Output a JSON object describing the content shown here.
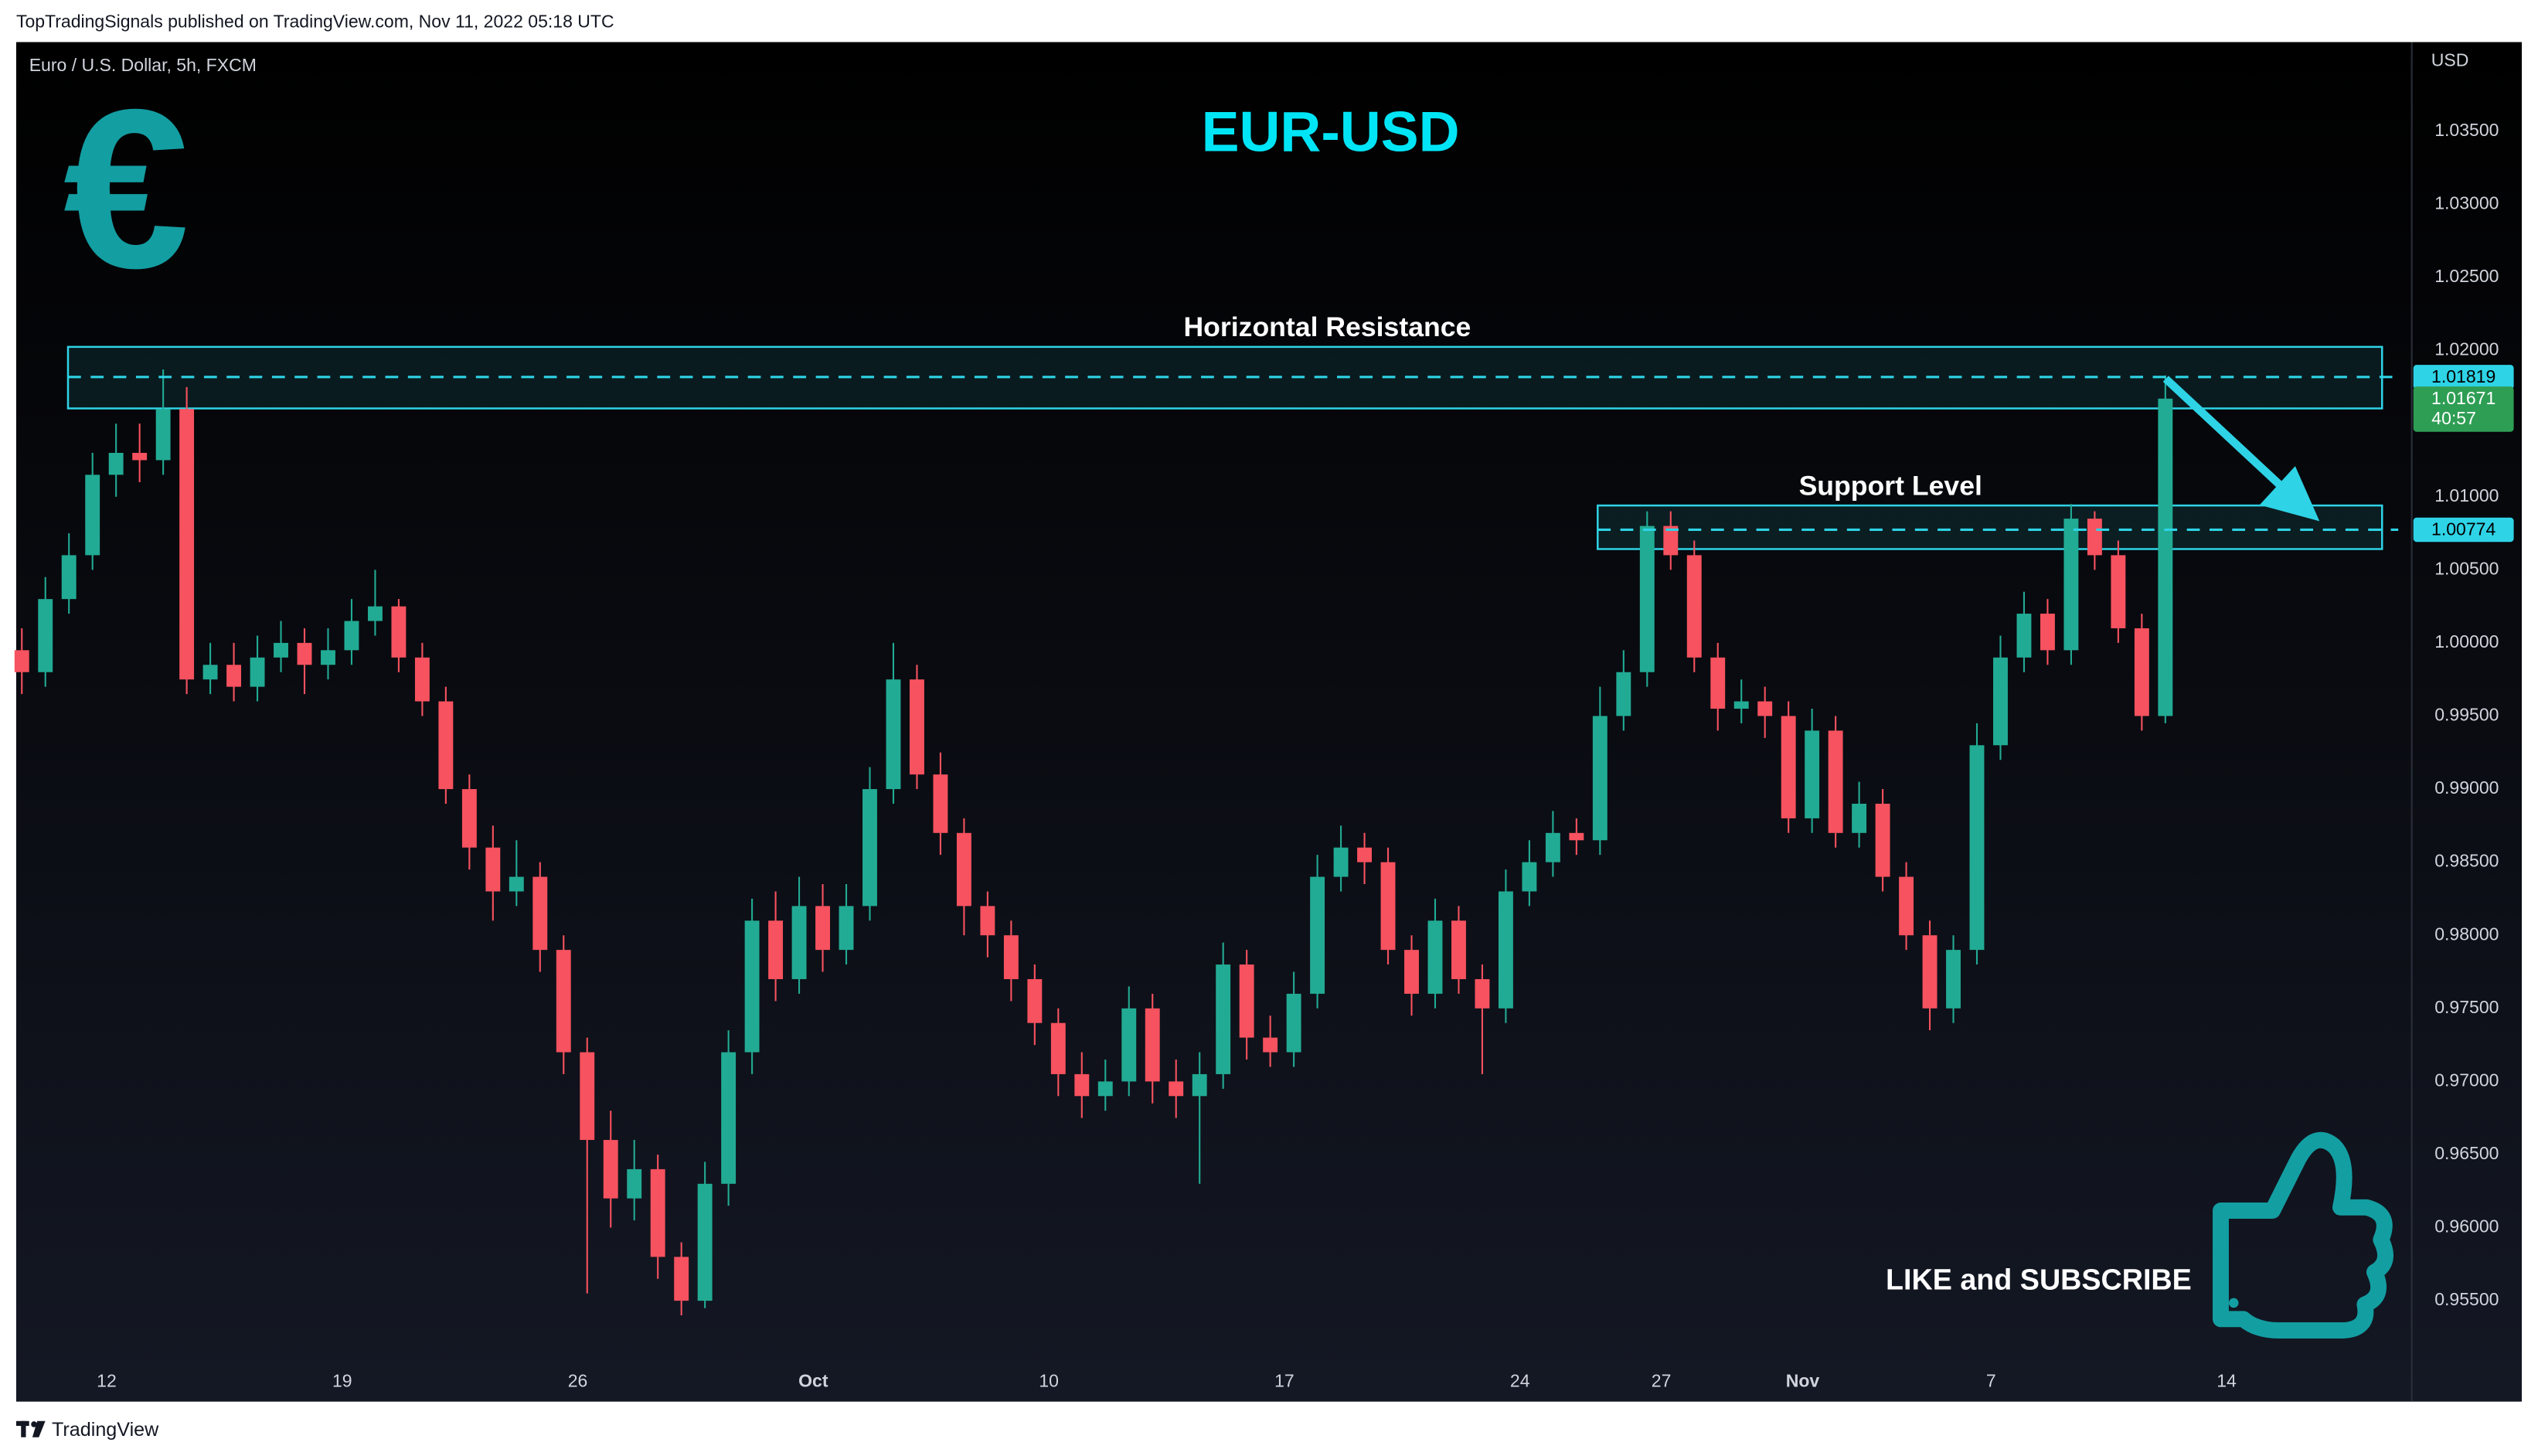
{
  "header": {
    "publisher": "TopTradingSignals published on TradingView.com, Nov 11, 2022 05:18 UTC"
  },
  "footer": {
    "brand": "TradingView"
  },
  "annotations": {
    "symbol_icon": "€",
    "call_to_action": "LIKE and SUBSCRIBE"
  },
  "chart_data": {
    "type": "candlestick",
    "title": "EUR-USD",
    "subtitle": "Euro / U.S. Dollar, 5h, FXCM",
    "y_axis_label": "USD",
    "up_color": "#22ab94",
    "down_color": "#f7525f",
    "grid": false,
    "xlim": [
      -1.92,
      48.93
    ],
    "ylim": [
      0.9481,
      1.0411
    ],
    "xticks": [
      {
        "value": 0,
        "label": "12"
      },
      {
        "value": 5,
        "label": "19"
      },
      {
        "value": 10,
        "label": "26"
      },
      {
        "value": 15,
        "label": "Oct"
      },
      {
        "value": 20,
        "label": "10"
      },
      {
        "value": 25,
        "label": "17"
      },
      {
        "value": 30,
        "label": "24"
      },
      {
        "value": 33,
        "label": "27"
      },
      {
        "value": 36,
        "label": "Nov"
      },
      {
        "value": 40,
        "label": "7"
      },
      {
        "value": 45,
        "label": "14"
      }
    ],
    "yticks": [
      {
        "value": 0.955,
        "label": "0.95500"
      },
      {
        "value": 0.96,
        "label": "0.96000"
      },
      {
        "value": 0.965,
        "label": "0.96500"
      },
      {
        "value": 0.97,
        "label": "0.97000"
      },
      {
        "value": 0.975,
        "label": "0.97500"
      },
      {
        "value": 0.98,
        "label": "0.98000"
      },
      {
        "value": 0.985,
        "label": "0.98500"
      },
      {
        "value": 0.99,
        "label": "0.99000"
      },
      {
        "value": 0.995,
        "label": "0.99500"
      },
      {
        "value": 1.0,
        "label": "1.00000"
      },
      {
        "value": 1.005,
        "label": "1.00500"
      },
      {
        "value": 1.01,
        "label": "1.01000"
      },
      {
        "value": 1.015,
        "label": "1.01500"
      },
      {
        "value": 1.02,
        "label": "1.02000"
      },
      {
        "value": 1.025,
        "label": "1.02500"
      },
      {
        "value": 1.03,
        "label": "1.03000"
      },
      {
        "value": 1.035,
        "label": "1.03500"
      }
    ],
    "x": [
      -1.8,
      -1.3,
      -0.8,
      -0.3,
      0.2,
      0.7,
      1.2,
      1.7,
      2.2,
      2.7,
      3.2,
      3.7,
      4.2,
      4.7,
      5.2,
      5.7,
      6.2,
      6.7,
      7.2,
      7.7,
      8.2,
      8.7,
      9.2,
      9.7,
      10.2,
      10.7,
      11.2,
      11.7,
      12.2,
      12.7,
      13.2,
      13.7,
      14.2,
      14.7,
      15.2,
      15.7,
      16.2,
      16.7,
      17.2,
      17.7,
      18.2,
      18.7,
      19.2,
      19.7,
      20.2,
      20.7,
      21.2,
      21.7,
      22.2,
      22.7,
      23.2,
      23.7,
      24.2,
      24.7,
      25.2,
      25.7,
      26.2,
      26.7,
      27.2,
      27.7,
      28.2,
      28.7,
      29.2,
      29.7,
      30.2,
      30.7,
      31.2,
      31.7,
      32.2,
      32.7,
      33.2,
      33.7,
      34.2,
      34.7,
      35.2,
      35.7,
      36.2,
      36.7,
      37.2,
      37.7,
      38.2,
      38.7,
      39.2,
      39.7,
      40.2,
      40.7,
      41.2,
      41.7,
      42.2,
      42.7,
      43.2,
      43.7
    ],
    "open": [
      0.9995,
      0.998,
      1.003,
      1.006,
      1.0115,
      1.013,
      1.0125,
      1.016,
      0.9975,
      0.9985,
      0.997,
      0.999,
      1.0,
      0.9985,
      0.9995,
      1.0015,
      1.0025,
      0.999,
      0.996,
      0.99,
      0.986,
      0.983,
      0.984,
      0.979,
      0.972,
      0.966,
      0.962,
      0.964,
      0.958,
      0.955,
      0.963,
      0.972,
      0.981,
      0.977,
      0.982,
      0.979,
      0.982,
      0.99,
      0.9975,
      0.991,
      0.987,
      0.982,
      0.98,
      0.977,
      0.974,
      0.9705,
      0.969,
      0.97,
      0.975,
      0.97,
      0.969,
      0.9705,
      0.978,
      0.973,
      0.972,
      0.976,
      0.984,
      0.986,
      0.985,
      0.979,
      0.976,
      0.981,
      0.977,
      0.975,
      0.983,
      0.985,
      0.987,
      0.9865,
      0.995,
      0.998,
      1.008,
      1.006,
      0.999,
      0.9955,
      0.996,
      0.995,
      0.988,
      0.994,
      0.987,
      0.989,
      0.984,
      0.98,
      0.975,
      0.979,
      0.993,
      0.999,
      1.002,
      0.9995,
      1.0085,
      1.006,
      1.001,
      0.995
    ],
    "high": [
      1.001,
      1.0045,
      1.0075,
      1.013,
      1.015,
      1.015,
      1.0187,
      1.0175,
      1.0,
      1.0,
      1.0005,
      1.0015,
      1.001,
      1.001,
      1.003,
      1.005,
      1.003,
      1.0,
      0.997,
      0.991,
      0.9875,
      0.9865,
      0.985,
      0.98,
      0.973,
      0.968,
      0.966,
      0.965,
      0.959,
      0.9645,
      0.9735,
      0.9825,
      0.983,
      0.984,
      0.9835,
      0.9835,
      0.9915,
      1.0,
      0.9985,
      0.9925,
      0.988,
      0.983,
      0.981,
      0.978,
      0.975,
      0.972,
      0.9715,
      0.9765,
      0.976,
      0.9715,
      0.972,
      0.9795,
      0.979,
      0.9745,
      0.9775,
      0.9855,
      0.9875,
      0.987,
      0.986,
      0.98,
      0.9825,
      0.982,
      0.978,
      0.9845,
      0.9865,
      0.9885,
      0.988,
      0.997,
      0.9995,
      1.009,
      1.009,
      1.007,
      1.0,
      0.9975,
      0.997,
      0.996,
      0.9955,
      0.995,
      0.9905,
      0.99,
      0.985,
      0.981,
      0.98,
      0.9945,
      1.0005,
      1.0035,
      1.003,
      1.0095,
      1.009,
      1.007,
      1.002,
      1.0183
    ],
    "low": [
      0.9965,
      0.997,
      1.002,
      1.005,
      1.01,
      1.011,
      1.0115,
      0.9965,
      0.9965,
      0.996,
      0.996,
      0.998,
      0.9965,
      0.9975,
      0.9985,
      1.0005,
      0.998,
      0.995,
      0.989,
      0.9845,
      0.981,
      0.982,
      0.9775,
      0.9705,
      0.9555,
      0.96,
      0.9605,
      0.9565,
      0.954,
      0.9545,
      0.9615,
      0.9705,
      0.9755,
      0.976,
      0.9775,
      0.978,
      0.981,
      0.989,
      0.99,
      0.9855,
      0.98,
      0.9785,
      0.9755,
      0.9725,
      0.969,
      0.9675,
      0.968,
      0.969,
      0.9685,
      0.9675,
      0.963,
      0.9695,
      0.9715,
      0.971,
      0.971,
      0.975,
      0.983,
      0.9835,
      0.978,
      0.9745,
      0.975,
      0.976,
      0.9705,
      0.974,
      0.982,
      0.984,
      0.9855,
      0.9855,
      0.994,
      0.997,
      1.005,
      0.998,
      0.994,
      0.9945,
      0.9935,
      0.987,
      0.987,
      0.986,
      0.986,
      0.983,
      0.979,
      0.9735,
      0.974,
      0.978,
      0.992,
      0.998,
      0.9985,
      0.9985,
      1.005,
      1.0,
      0.994,
      0.9945
    ],
    "close": [
      0.998,
      1.003,
      1.006,
      1.0115,
      1.013,
      1.0125,
      1.016,
      0.9975,
      0.9985,
      0.997,
      0.999,
      1.0,
      0.9985,
      0.9995,
      1.0015,
      1.0025,
      0.999,
      0.996,
      0.99,
      0.986,
      0.983,
      0.984,
      0.979,
      0.972,
      0.966,
      0.962,
      0.964,
      0.958,
      0.955,
      0.963,
      0.972,
      0.981,
      0.977,
      0.982,
      0.979,
      0.982,
      0.99,
      0.9975,
      0.991,
      0.987,
      0.982,
      0.98,
      0.977,
      0.974,
      0.9705,
      0.969,
      0.97,
      0.975,
      0.97,
      0.969,
      0.9705,
      0.978,
      0.973,
      0.972,
      0.976,
      0.984,
      0.986,
      0.985,
      0.979,
      0.976,
      0.981,
      0.977,
      0.975,
      0.983,
      0.985,
      0.987,
      0.9865,
      0.995,
      0.998,
      1.008,
      1.006,
      0.999,
      0.9955,
      0.996,
      0.995,
      0.988,
      0.994,
      0.987,
      0.989,
      0.984,
      0.98,
      0.975,
      0.979,
      0.993,
      0.999,
      1.002,
      0.9995,
      1.0085,
      1.006,
      1.001,
      0.995,
      1.01671
    ],
    "zones": [
      {
        "label": "Horizontal Resistance",
        "range": [
          1.01604,
          1.02025
        ],
        "xrange": [
          -0.82,
          48.3
        ],
        "level": 1.01819
      },
      {
        "label": "Support Level",
        "range": [
          1.00642,
          1.0094
        ],
        "xrange": [
          31.65,
          48.3
        ],
        "level": 1.00774
      }
    ],
    "zone_color": "#2ed3e6",
    "last_price": 1.01671,
    "countdown": "40:57"
  }
}
